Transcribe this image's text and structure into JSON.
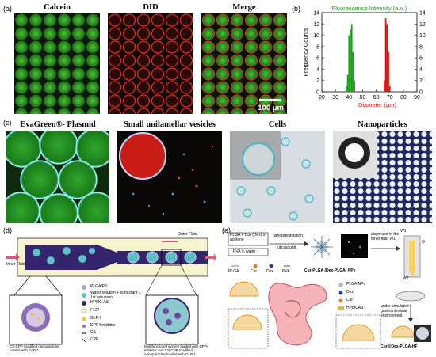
{
  "panels": {
    "a": {
      "label": "(a)",
      "titles": [
        "Calcein",
        "DID",
        "Merge"
      ],
      "scale_bar": "100 μm"
    },
    "b": {
      "label": "(b)"
    },
    "c": {
      "label": "(c)",
      "titles": [
        "EvaGreen®- Plasmid",
        "Small unilamellar vesicles",
        "Cells",
        "Nanoparticles"
      ]
    },
    "d": {
      "label": "(d)",
      "outer_fluid": "Outer Fluid",
      "inner_fluid": "Inner Fluid",
      "legend": [
        "PLGA/PS",
        "Water solution + surfactant + 1st emulsion",
        "HPMC-AS",
        "F127",
        "GLP-1",
        "DPP4 inhibitor",
        "CS",
        "CPP"
      ],
      "np_caption": "CS-CPP modified nanoparticles loaded with GLP-1",
      "system_caption": "Multifunctional system loaded with DPP4 inhibitor and CS-CPP modified nanoparticles loaded with GLP-1"
    },
    "e": {
      "label": "(e)",
      "box1": "PLGA + Cur (Dex) in acetone",
      "box2": "PVA in water",
      "nanoprecipitation": "nanoprecipitation",
      "ultrasound": "ultrasound",
      "np_name": "Cur-PLGA (Dex-PLGA) NPs",
      "dispersed": "dispersed in the Inner fluid W1",
      "legend_top": [
        "PLGA",
        "Cur",
        "Dex",
        "PVA"
      ],
      "legend_side": [
        "PLGA NPs",
        "Dex",
        "Cur",
        "HPMCAS"
      ],
      "gi_text": "under simulated gastrointestinal environment",
      "final_name": "Cur@Dex-PLGA-HF",
      "w1": "W1",
      "w2": "W2",
      "o": "O"
    }
  },
  "chart_data": {
    "type": "bar",
    "title": "Fluorescence Intensity (a.u.)",
    "xlabel": "Diameter (μm)",
    "ylabel": "Frequency Counts",
    "xlim": [
      20,
      90
    ],
    "ylim": [
      0,
      14
    ],
    "xticks": [
      20,
      30,
      40,
      50,
      60,
      70,
      80,
      90
    ],
    "yticks": [
      0,
      2,
      4,
      6,
      8,
      10,
      12,
      14
    ],
    "series": [
      {
        "color": "#1aa01a",
        "x": [
          38,
          39,
          40,
          41,
          42,
          43,
          44
        ],
        "values": [
          1,
          3,
          10,
          11,
          12,
          7,
          2
        ]
      },
      {
        "color": "#d01818",
        "x": [
          66,
          67,
          68,
          69,
          70
        ],
        "values": [
          2,
          13,
          12,
          7,
          1
        ]
      }
    ]
  }
}
